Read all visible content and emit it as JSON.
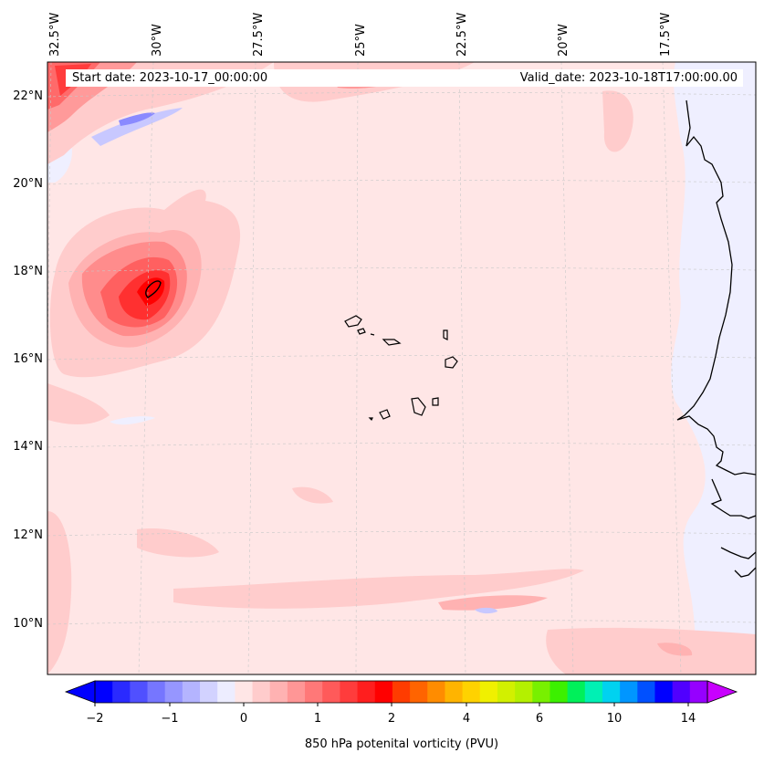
{
  "header": {
    "start_date": "Start date: 2023-10-17_00:00:00",
    "valid_date": "Valid_date: 2023-10-18T17:00:00.00"
  },
  "map": {
    "lon_labels": [
      "32.5°W",
      "30°W",
      "27.5°W",
      "25°W",
      "22.5°W",
      "20°W",
      "17.5°W"
    ],
    "lat_labels": [
      "22°N",
      "20°N",
      "18°N",
      "16°N",
      "14°N",
      "12°N",
      "10°N"
    ],
    "background_color": "#ffe6e6",
    "features": [
      "Cape Verde islands",
      "West African coastline"
    ]
  },
  "colorbar": {
    "title": "850 hPa potenital vorticity (PVU)",
    "tick_labels": [
      "−2",
      "−1",
      "0",
      "1",
      "2",
      "4",
      "6",
      "10",
      "14"
    ],
    "extend": "both",
    "colors": [
      "#0000ff",
      "#2a2aff",
      "#5050ff",
      "#7676ff",
      "#9696ff",
      "#b4b4ff",
      "#d2d2ff",
      "#ededff",
      "#ffe6e6",
      "#ffcccc",
      "#ffb2b2",
      "#ff9696",
      "#ff7878",
      "#ff5a5a",
      "#ff3c3c",
      "#ff1e1e",
      "#ff0000",
      "#ff3c00",
      "#ff6400",
      "#ff8c00",
      "#ffb400",
      "#ffd200",
      "#f0f000",
      "#d2f000",
      "#b4f000",
      "#78f000",
      "#3cf000",
      "#00f05a",
      "#00f0b4",
      "#00d2f0",
      "#0096ff",
      "#0050ff",
      "#0000ff",
      "#5000ff",
      "#9600ff"
    ],
    "left_color": "#0000ff",
    "right_color": "#c800ff"
  }
}
